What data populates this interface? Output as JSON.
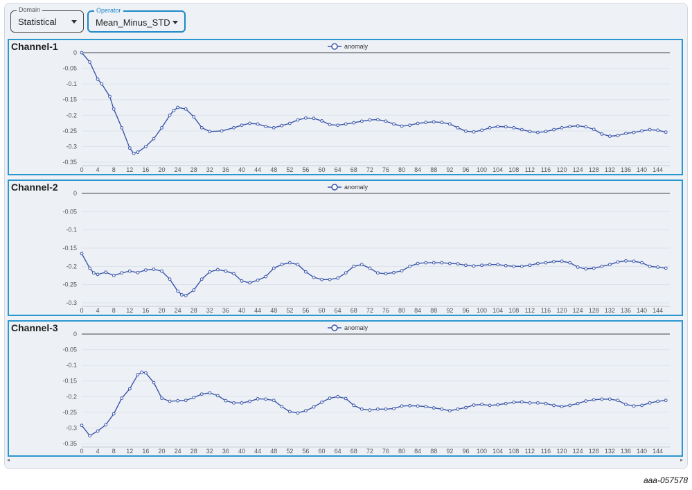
{
  "domain_select": {
    "label": "Domain",
    "value": "Statistical"
  },
  "operator_select": {
    "label": "Operator",
    "value": "Mean_Minus_STD"
  },
  "scroll_left_glyph": "◂",
  "scroll_right_glyph": "▸",
  "figure_id": "aaa-057578",
  "colors": {
    "series": "#3a55a8",
    "grid": "#dde2ea",
    "axis": "#444444",
    "panel_border": "#2b97cf"
  },
  "icons": {
    "caret": "chevron-down-icon",
    "legend_marker": "circle-line-icon"
  },
  "chart_data": [
    {
      "title": "Channel-1",
      "type": "line",
      "legend": "anomaly",
      "legend_position": "top-center",
      "x_ticks": [
        0,
        4,
        8,
        12,
        16,
        20,
        24,
        28,
        32,
        36,
        40,
        44,
        48,
        52,
        56,
        60,
        64,
        68,
        72,
        76,
        80,
        84,
        88,
        92,
        96,
        100,
        104,
        108,
        112,
        116,
        120,
        124,
        128,
        132,
        136,
        140,
        144
      ],
      "y_ticks": [
        0,
        -0.05,
        -0.1,
        -0.15,
        -0.2,
        -0.25,
        -0.3,
        -0.35
      ],
      "ylim": [
        -0.35,
        0
      ],
      "xlim": [
        0,
        147
      ],
      "grid": "horizontal",
      "points": [
        [
          0,
          0
        ],
        [
          2,
          -0.03
        ],
        [
          4,
          -0.085
        ],
        [
          5,
          -0.1
        ],
        [
          7,
          -0.14
        ],
        [
          8,
          -0.18
        ],
        [
          10,
          -0.24
        ],
        [
          12,
          -0.305
        ],
        [
          13,
          -0.322
        ],
        [
          14,
          -0.318
        ],
        [
          16,
          -0.3
        ],
        [
          18,
          -0.275
        ],
        [
          20,
          -0.24
        ],
        [
          22,
          -0.2
        ],
        [
          23,
          -0.185
        ],
        [
          24,
          -0.175
        ],
        [
          26,
          -0.18
        ],
        [
          28,
          -0.205
        ],
        [
          30,
          -0.24
        ],
        [
          32,
          -0.252
        ],
        [
          35,
          -0.25
        ],
        [
          38,
          -0.24
        ],
        [
          40,
          -0.232
        ],
        [
          42,
          -0.226
        ],
        [
          44,
          -0.228
        ],
        [
          46,
          -0.236
        ],
        [
          48,
          -0.24
        ],
        [
          50,
          -0.233
        ],
        [
          52,
          -0.226
        ],
        [
          54,
          -0.215
        ],
        [
          56,
          -0.209
        ],
        [
          58,
          -0.21
        ],
        [
          60,
          -0.218
        ],
        [
          62,
          -0.23
        ],
        [
          64,
          -0.232
        ],
        [
          66,
          -0.228
        ],
        [
          68,
          -0.224
        ],
        [
          70,
          -0.219
        ],
        [
          72,
          -0.215
        ],
        [
          74,
          -0.214
        ],
        [
          76,
          -0.219
        ],
        [
          78,
          -0.228
        ],
        [
          80,
          -0.235
        ],
        [
          82,
          -0.232
        ],
        [
          84,
          -0.226
        ],
        [
          86,
          -0.223
        ],
        [
          88,
          -0.221
        ],
        [
          90,
          -0.223
        ],
        [
          92,
          -0.228
        ],
        [
          94,
          -0.24
        ],
        [
          96,
          -0.251
        ],
        [
          98,
          -0.253
        ],
        [
          100,
          -0.248
        ],
        [
          102,
          -0.24
        ],
        [
          104,
          -0.236
        ],
        [
          106,
          -0.237
        ],
        [
          108,
          -0.24
        ],
        [
          110,
          -0.246
        ],
        [
          112,
          -0.252
        ],
        [
          114,
          -0.255
        ],
        [
          116,
          -0.252
        ],
        [
          118,
          -0.246
        ],
        [
          120,
          -0.24
        ],
        [
          122,
          -0.236
        ],
        [
          124,
          -0.234
        ],
        [
          126,
          -0.237
        ],
        [
          128,
          -0.245
        ],
        [
          130,
          -0.26
        ],
        [
          132,
          -0.267
        ],
        [
          134,
          -0.265
        ],
        [
          136,
          -0.258
        ],
        [
          138,
          -0.255
        ],
        [
          140,
          -0.25
        ],
        [
          142,
          -0.246
        ],
        [
          144,
          -0.248
        ],
        [
          146,
          -0.254
        ]
      ]
    },
    {
      "title": "Channel-2",
      "type": "line",
      "legend": "anomaly",
      "legend_position": "top-center",
      "x_ticks": [
        0,
        4,
        8,
        12,
        16,
        20,
        24,
        28,
        32,
        36,
        40,
        44,
        48,
        52,
        56,
        60,
        64,
        68,
        72,
        76,
        80,
        84,
        88,
        92,
        96,
        100,
        104,
        108,
        112,
        116,
        120,
        124,
        128,
        132,
        136,
        140,
        144
      ],
      "y_ticks": [
        0,
        -0.05,
        -0.1,
        -0.15,
        -0.2,
        -0.25,
        -0.3
      ],
      "ylim": [
        -0.3,
        0
      ],
      "xlim": [
        0,
        147
      ],
      "grid": "horizontal",
      "points": [
        [
          0,
          -0.165
        ],
        [
          2,
          -0.205
        ],
        [
          3,
          -0.218
        ],
        [
          4,
          -0.222
        ],
        [
          6,
          -0.216
        ],
        [
          8,
          -0.225
        ],
        [
          10,
          -0.218
        ],
        [
          12,
          -0.213
        ],
        [
          14,
          -0.217
        ],
        [
          16,
          -0.21
        ],
        [
          18,
          -0.208
        ],
        [
          20,
          -0.213
        ],
        [
          22,
          -0.235
        ],
        [
          24,
          -0.268
        ],
        [
          25,
          -0.278
        ],
        [
          26,
          -0.28
        ],
        [
          28,
          -0.265
        ],
        [
          30,
          -0.235
        ],
        [
          32,
          -0.215
        ],
        [
          34,
          -0.209
        ],
        [
          36,
          -0.213
        ],
        [
          38,
          -0.22
        ],
        [
          40,
          -0.24
        ],
        [
          42,
          -0.245
        ],
        [
          44,
          -0.238
        ],
        [
          46,
          -0.228
        ],
        [
          48,
          -0.205
        ],
        [
          50,
          -0.195
        ],
        [
          52,
          -0.19
        ],
        [
          54,
          -0.195
        ],
        [
          56,
          -0.215
        ],
        [
          58,
          -0.23
        ],
        [
          60,
          -0.236
        ],
        [
          62,
          -0.236
        ],
        [
          64,
          -0.232
        ],
        [
          66,
          -0.218
        ],
        [
          68,
          -0.2
        ],
        [
          70,
          -0.195
        ],
        [
          72,
          -0.205
        ],
        [
          74,
          -0.218
        ],
        [
          76,
          -0.22
        ],
        [
          78,
          -0.217
        ],
        [
          80,
          -0.212
        ],
        [
          82,
          -0.2
        ],
        [
          84,
          -0.192
        ],
        [
          86,
          -0.19
        ],
        [
          88,
          -0.19
        ],
        [
          90,
          -0.19
        ],
        [
          92,
          -0.192
        ],
        [
          94,
          -0.193
        ],
        [
          96,
          -0.197
        ],
        [
          98,
          -0.199
        ],
        [
          100,
          -0.197
        ],
        [
          102,
          -0.195
        ],
        [
          104,
          -0.195
        ],
        [
          106,
          -0.198
        ],
        [
          108,
          -0.2
        ],
        [
          110,
          -0.2
        ],
        [
          112,
          -0.197
        ],
        [
          114,
          -0.192
        ],
        [
          116,
          -0.19
        ],
        [
          118,
          -0.187
        ],
        [
          120,
          -0.186
        ],
        [
          122,
          -0.19
        ],
        [
          124,
          -0.202
        ],
        [
          126,
          -0.207
        ],
        [
          128,
          -0.205
        ],
        [
          130,
          -0.2
        ],
        [
          132,
          -0.195
        ],
        [
          134,
          -0.188
        ],
        [
          136,
          -0.185
        ],
        [
          138,
          -0.186
        ],
        [
          140,
          -0.19
        ],
        [
          142,
          -0.2
        ],
        [
          144,
          -0.202
        ],
        [
          146,
          -0.205
        ]
      ]
    },
    {
      "title": "Channel-3",
      "type": "line",
      "legend": "anomaly",
      "legend_position": "top-center",
      "x_ticks": [
        0,
        4,
        8,
        12,
        16,
        20,
        24,
        28,
        32,
        36,
        40,
        44,
        48,
        52,
        56,
        60,
        64,
        68,
        72,
        76,
        80,
        84,
        88,
        92,
        96,
        100,
        104,
        108,
        112,
        116,
        120,
        124,
        128,
        132,
        136,
        140,
        144
      ],
      "y_ticks": [
        0,
        -0.05,
        -0.1,
        -0.15,
        -0.2,
        -0.25,
        -0.3,
        -0.35
      ],
      "ylim": [
        -0.35,
        0
      ],
      "xlim": [
        0,
        147
      ],
      "grid": "horizontal",
      "points": [
        [
          0,
          -0.292
        ],
        [
          2,
          -0.325
        ],
        [
          4,
          -0.31
        ],
        [
          6,
          -0.29
        ],
        [
          8,
          -0.255
        ],
        [
          10,
          -0.205
        ],
        [
          12,
          -0.175
        ],
        [
          14,
          -0.13
        ],
        [
          15,
          -0.122
        ],
        [
          16,
          -0.124
        ],
        [
          18,
          -0.155
        ],
        [
          20,
          -0.205
        ],
        [
          22,
          -0.215
        ],
        [
          24,
          -0.213
        ],
        [
          26,
          -0.212
        ],
        [
          28,
          -0.203
        ],
        [
          30,
          -0.192
        ],
        [
          32,
          -0.188
        ],
        [
          34,
          -0.197
        ],
        [
          36,
          -0.213
        ],
        [
          38,
          -0.22
        ],
        [
          40,
          -0.22
        ],
        [
          42,
          -0.215
        ],
        [
          44,
          -0.207
        ],
        [
          46,
          -0.208
        ],
        [
          48,
          -0.212
        ],
        [
          50,
          -0.232
        ],
        [
          52,
          -0.248
        ],
        [
          54,
          -0.252
        ],
        [
          56,
          -0.245
        ],
        [
          58,
          -0.233
        ],
        [
          60,
          -0.218
        ],
        [
          62,
          -0.205
        ],
        [
          64,
          -0.2
        ],
        [
          66,
          -0.206
        ],
        [
          68,
          -0.228
        ],
        [
          70,
          -0.24
        ],
        [
          72,
          -0.243
        ],
        [
          74,
          -0.24
        ],
        [
          76,
          -0.24
        ],
        [
          78,
          -0.238
        ],
        [
          80,
          -0.23
        ],
        [
          82,
          -0.229
        ],
        [
          84,
          -0.23
        ],
        [
          86,
          -0.232
        ],
        [
          88,
          -0.236
        ],
        [
          90,
          -0.24
        ],
        [
          92,
          -0.245
        ],
        [
          94,
          -0.24
        ],
        [
          96,
          -0.235
        ],
        [
          98,
          -0.227
        ],
        [
          100,
          -0.225
        ],
        [
          102,
          -0.228
        ],
        [
          104,
          -0.226
        ],
        [
          106,
          -0.222
        ],
        [
          108,
          -0.218
        ],
        [
          110,
          -0.217
        ],
        [
          112,
          -0.22
        ],
        [
          114,
          -0.22
        ],
        [
          116,
          -0.222
        ],
        [
          118,
          -0.228
        ],
        [
          120,
          -0.232
        ],
        [
          122,
          -0.228
        ],
        [
          124,
          -0.222
        ],
        [
          126,
          -0.214
        ],
        [
          128,
          -0.21
        ],
        [
          130,
          -0.208
        ],
        [
          132,
          -0.208
        ],
        [
          134,
          -0.212
        ],
        [
          136,
          -0.225
        ],
        [
          138,
          -0.23
        ],
        [
          140,
          -0.228
        ],
        [
          142,
          -0.22
        ],
        [
          144,
          -0.215
        ],
        [
          146,
          -0.212
        ]
      ]
    }
  ]
}
